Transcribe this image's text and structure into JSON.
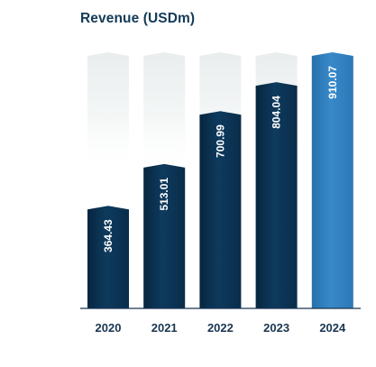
{
  "chart_data": {
    "type": "bar",
    "title": "Revenue (USDm)",
    "categories": [
      "2020",
      "2021",
      "2022",
      "2023",
      "2024"
    ],
    "values": [
      364.43,
      513.01,
      700.99,
      804.04,
      910.07
    ],
    "value_labels": [
      "364.43",
      "513.01",
      "700.99",
      "804.04",
      "910.07"
    ],
    "ylim": [
      0,
      910.07
    ],
    "grid": false,
    "legend": "none",
    "highlight_category": "2024",
    "colors": {
      "bar": "#0b3354",
      "bar_highlight": "#2f7fbf",
      "bar_background": "#eef1f2",
      "axis_line": "#1a3550",
      "title": "#133a57"
    }
  }
}
